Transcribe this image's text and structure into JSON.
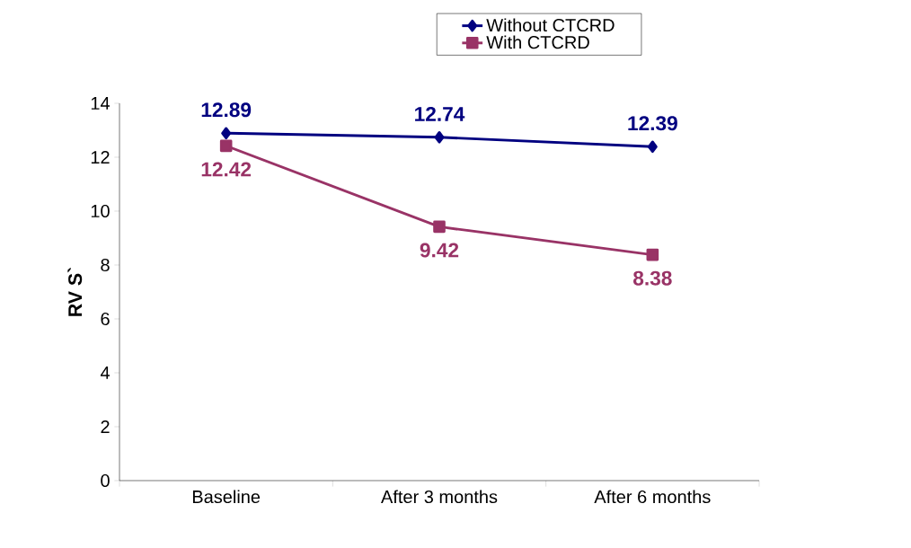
{
  "chart_data": {
    "type": "line",
    "ylabel": "RV S`",
    "categories": [
      "Baseline",
      "After 3 months",
      "After 6 months"
    ],
    "series": [
      {
        "name": "Without CTCRD",
        "color": "#000080",
        "marker": "diamond",
        "values": [
          12.89,
          12.74,
          12.39
        ]
      },
      {
        "name": "With CTCRD",
        "color": "#993366",
        "marker": "square",
        "values": [
          12.42,
          9.42,
          8.38
        ]
      }
    ],
    "ylim": [
      0,
      14
    ],
    "yticks": [
      0,
      2,
      4,
      6,
      8,
      10,
      12,
      14
    ],
    "data_labels": true,
    "legend": "top",
    "grid": false,
    "line_style": "solid"
  }
}
